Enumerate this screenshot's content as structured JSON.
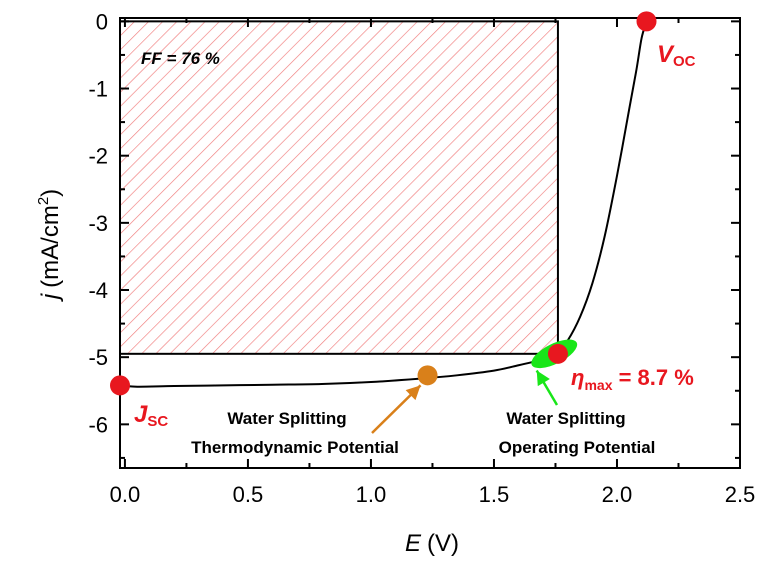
{
  "chart_data": {
    "type": "line",
    "xlabel": {
      "symbol": "E",
      "unit": "(V)"
    },
    "ylabel": {
      "symbol": "j",
      "unit": "(mA/cm",
      "sup": "2",
      "close": ")"
    },
    "xlim": [
      -0.02,
      2.5
    ],
    "ylim": [
      -6.65,
      0.05
    ],
    "x_ticks": [
      0.0,
      0.5,
      1.0,
      1.5,
      2.0,
      2.5
    ],
    "x_tick_labels": [
      "0.0",
      "0.5",
      "1.0",
      "1.5",
      "2.0",
      "2.5"
    ],
    "y_ticks": [
      0,
      -1,
      -2,
      -3,
      -4,
      -5,
      -6
    ],
    "y_tick_labels": [
      "0",
      "-1",
      "-2",
      "-3",
      "-4",
      "-5",
      "-6"
    ],
    "series": [
      {
        "x": [
          -0.02,
          0.05,
          0.2,
          0.4,
          0.6,
          0.8,
          1.0,
          1.2,
          1.35,
          1.5,
          1.6,
          1.68,
          1.72,
          1.76,
          1.8,
          1.85,
          1.9,
          1.95,
          2.0,
          2.05,
          2.08,
          2.1,
          2.12
        ],
        "y": [
          -5.42,
          -5.44,
          -5.43,
          -5.42,
          -5.41,
          -5.4,
          -5.37,
          -5.32,
          -5.27,
          -5.2,
          -5.12,
          -5.05,
          -5.0,
          -4.92,
          -4.75,
          -4.4,
          -3.9,
          -3.2,
          -2.3,
          -1.3,
          -0.7,
          -0.25,
          0.0
        ],
        "color": "#000000"
      }
    ],
    "fill_factor_box": {
      "x0": -0.02,
      "x1": 1.76,
      "y0": 0,
      "y1": -4.95,
      "hatch_color": "#f07b7b"
    },
    "markers": [
      {
        "x": -0.02,
        "y": -5.42,
        "color": "#e8171f"
      },
      {
        "x": 2.12,
        "y": 0.0,
        "color": "#e8171f"
      },
      {
        "x": 1.76,
        "y": -4.95,
        "color": "#e8171f"
      },
      {
        "x": 1.23,
        "y": -5.27,
        "color": "#d9801a"
      }
    ],
    "operating_region": {
      "x": [
        1.69,
        1.8
      ],
      "y": [
        -5.05,
        -4.85
      ],
      "color": "#19e619"
    },
    "annotations": {
      "ff": "FF = 76 %",
      "voc_main": "V",
      "voc_sub": "OC",
      "jsc_main": "J",
      "jsc_sub": "SC",
      "eta_main": "η",
      "eta_sub": "max",
      "eta_value": " = 8.7 %",
      "thermo_line1": "Water Splitting",
      "thermo_line2": "Thermodynamic Potential",
      "operating_line1": "Water Splitting",
      "operating_line2": "Operating Potential"
    },
    "colors": {
      "red": "#e8171f",
      "orange": "#d9801a",
      "green": "#19e619",
      "hatch": "#f07b7b"
    }
  }
}
